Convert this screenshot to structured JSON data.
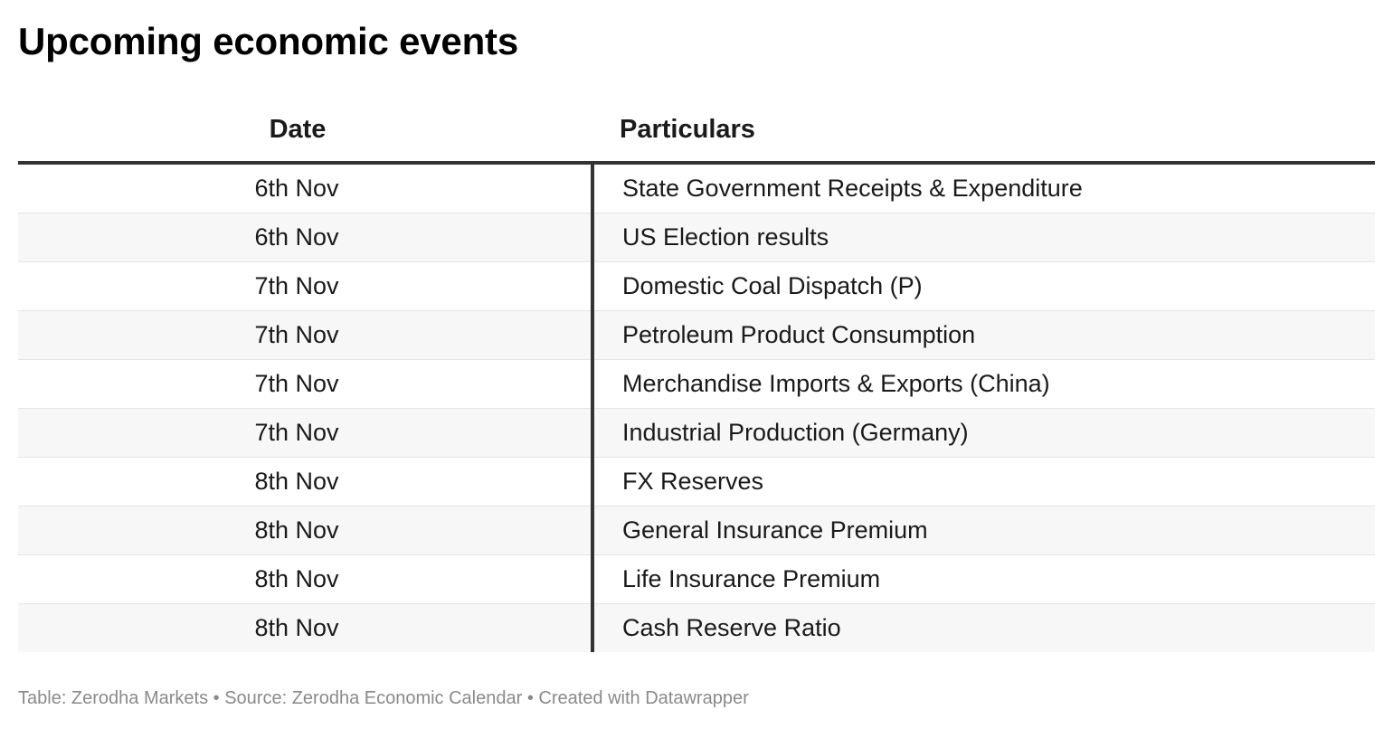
{
  "title": "Upcoming economic events",
  "table": {
    "headers": [
      "Date",
      "Particulars"
    ],
    "rows": [
      [
        "6th Nov",
        "State Government Receipts & Expenditure"
      ],
      [
        "6th Nov",
        "US Election results"
      ],
      [
        "7th Nov",
        "Domestic Coal Dispatch (P)"
      ],
      [
        "7th Nov",
        "Petroleum Product Consumption"
      ],
      [
        "7th Nov",
        "Merchandise Imports & Exports (China)"
      ],
      [
        "7th Nov",
        "Industrial Production (Germany)"
      ],
      [
        "8th Nov",
        "FX Reserves"
      ],
      [
        "8th Nov",
        "General Insurance Premium"
      ],
      [
        "8th Nov",
        "Life Insurance Premium"
      ],
      [
        "8th Nov",
        "Cash Reserve Ratio"
      ]
    ]
  },
  "footer": "Table: Zerodha Markets • Source: Zerodha Economic Calendar • Created with Datawrapper"
}
